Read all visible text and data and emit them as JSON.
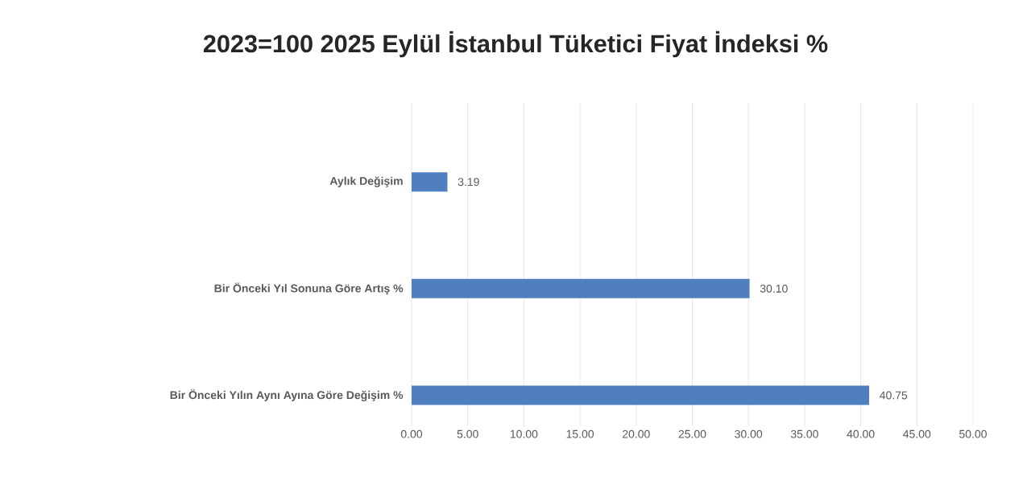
{
  "chart_data": {
    "type": "bar",
    "orientation": "horizontal",
    "title": "2023=100 2025 Eylül İstanbul Tüketici Fiyat İndeksi %",
    "categories": [
      "Aylık Değişim",
      "Bir Önceki Yıl Sonuna Göre Artış %",
      "Bir Önceki Yılın Aynı Ayına Göre Değişim %"
    ],
    "values": [
      3.19,
      30.1,
      40.75
    ],
    "value_labels": [
      "3.19",
      "30.10",
      "40.75"
    ],
    "color": "#4f7fbf",
    "xlim": [
      0,
      50
    ],
    "xticks": [
      {
        "value": 0,
        "label": "0.00"
      },
      {
        "value": 5,
        "label": "5.00"
      },
      {
        "value": 10,
        "label": "10.00"
      },
      {
        "value": 15,
        "label": "15.00"
      },
      {
        "value": 20,
        "label": "20.00"
      },
      {
        "value": 25,
        "label": "25.00"
      },
      {
        "value": 30,
        "label": "30.00"
      },
      {
        "value": 35,
        "label": "35.00"
      },
      {
        "value": 40,
        "label": "40.00"
      },
      {
        "value": 45,
        "label": "45.00"
      },
      {
        "value": 50,
        "label": "50.00"
      }
    ],
    "grid": "x"
  }
}
